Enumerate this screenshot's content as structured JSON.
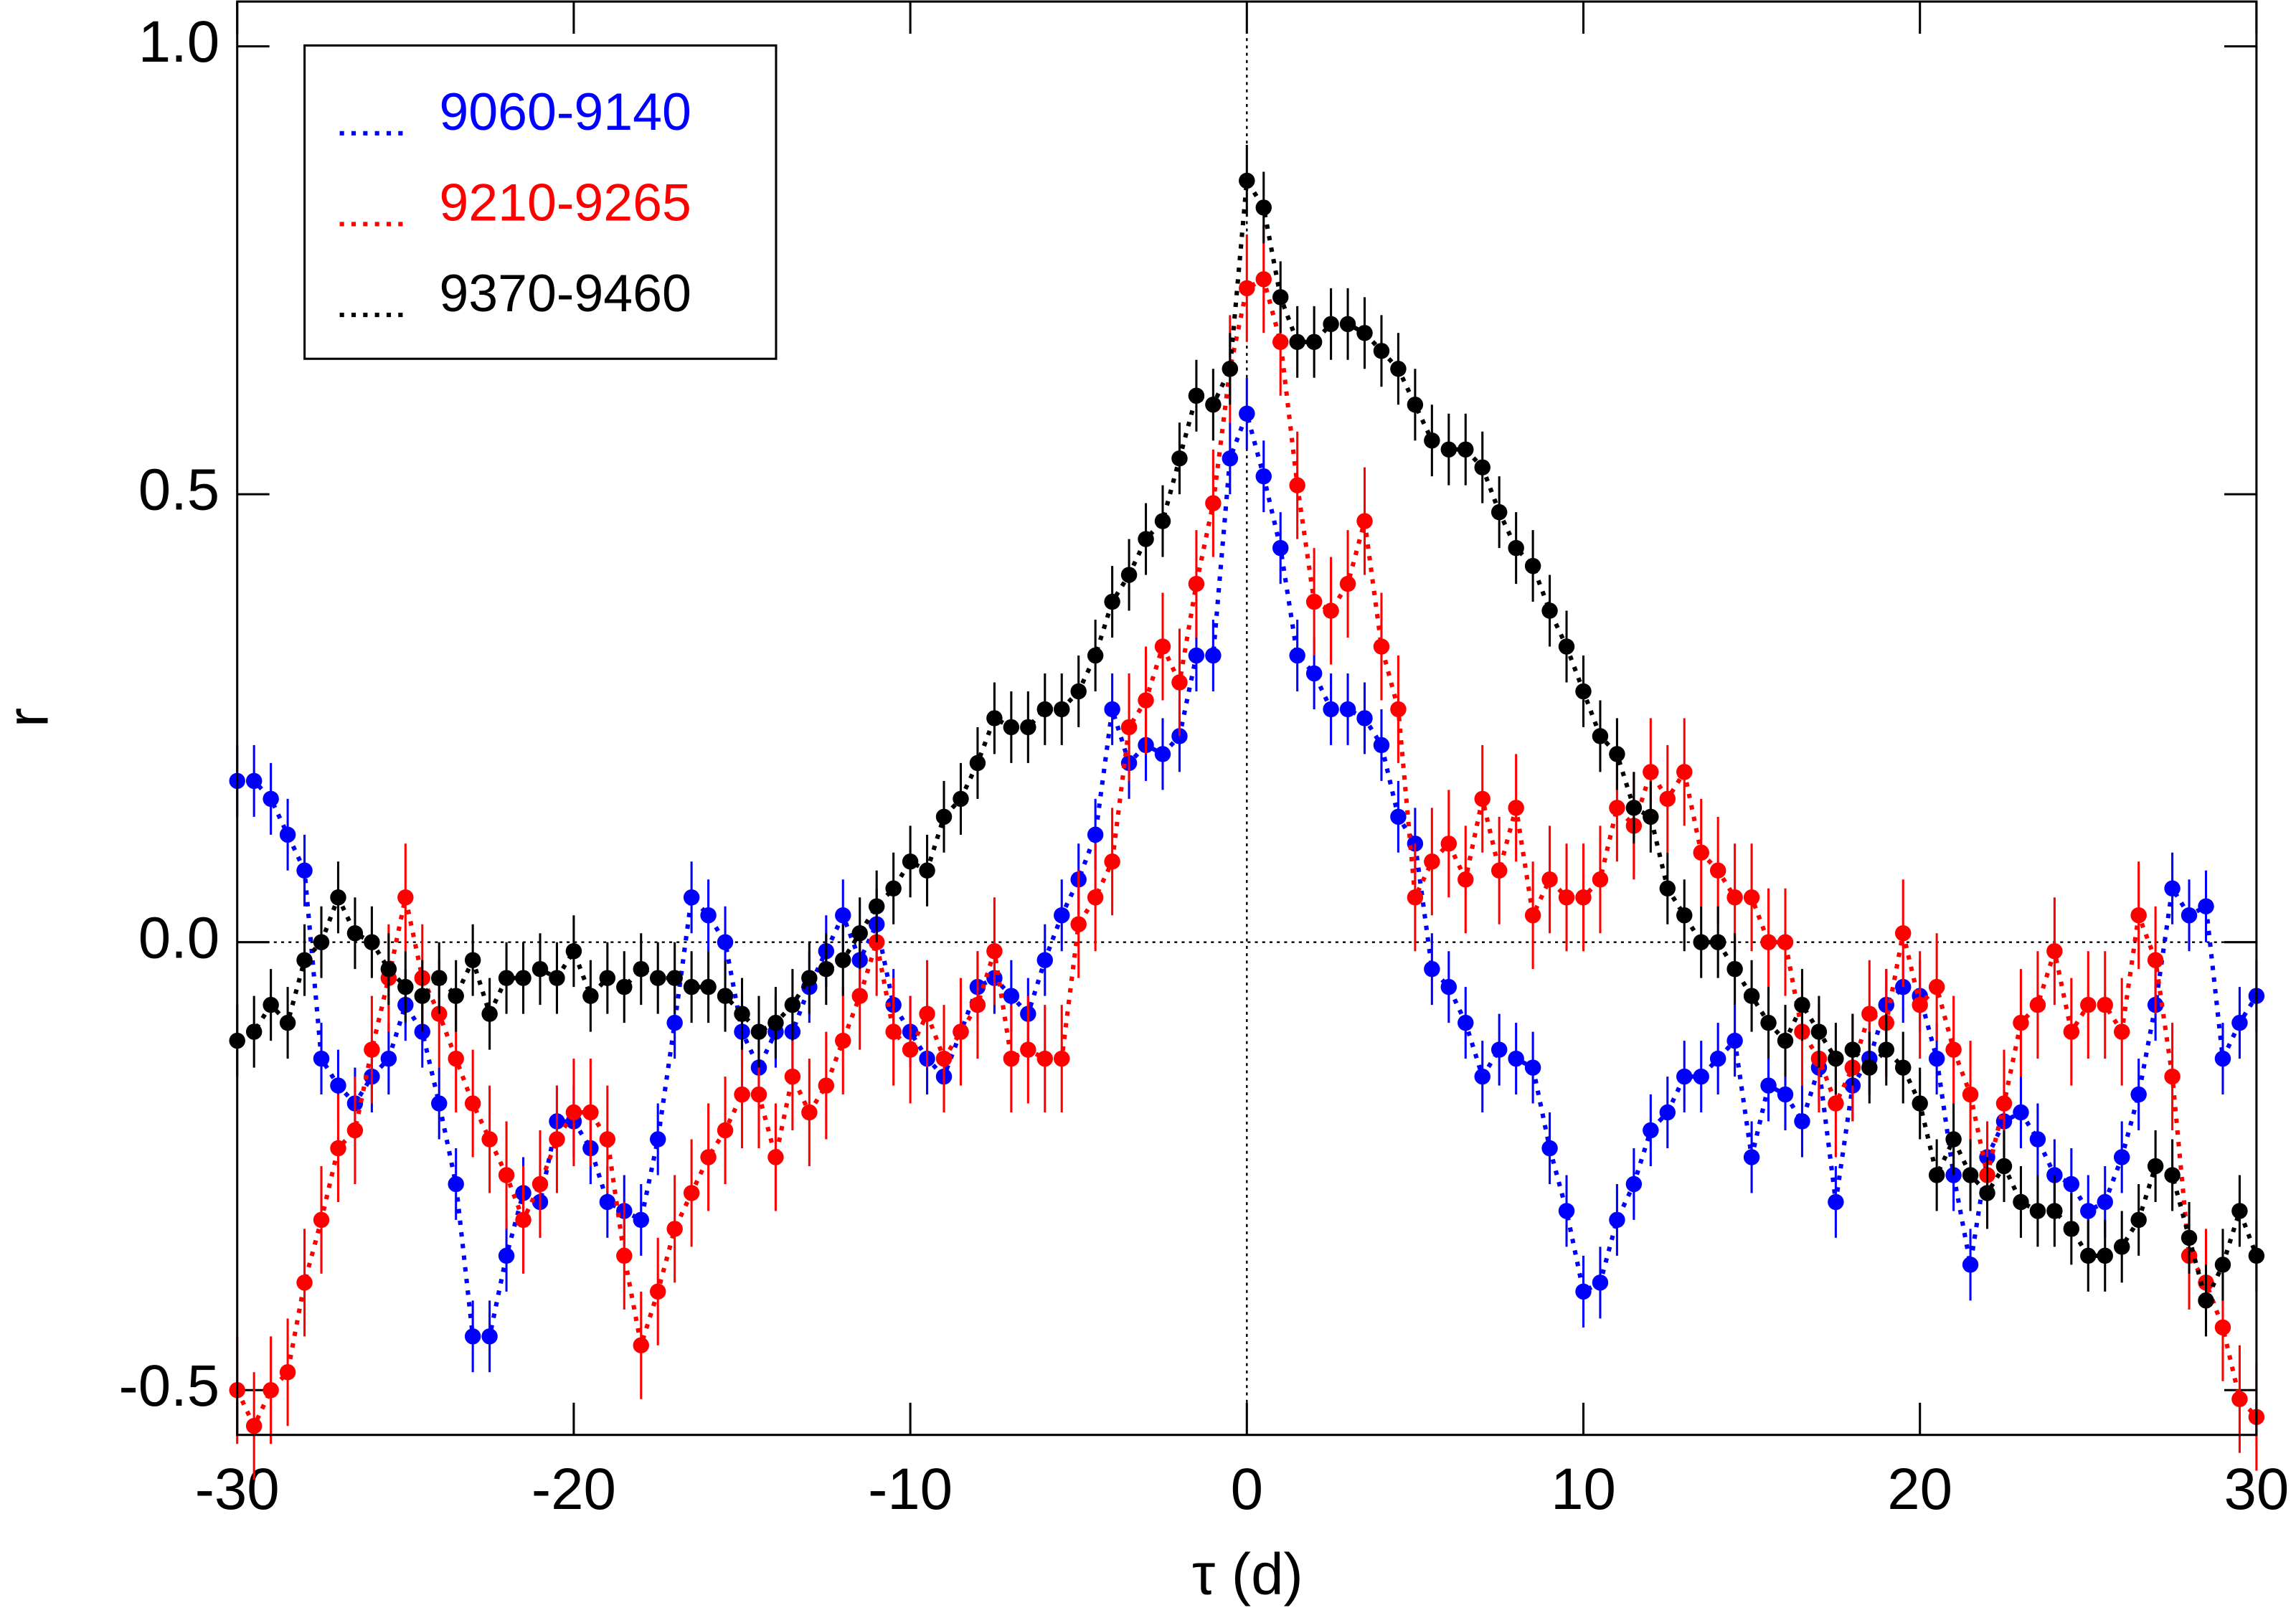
{
  "chart_data": {
    "type": "scatter",
    "xlabel": "τ (d)",
    "ylabel": "r",
    "xlim": [
      -30,
      30
    ],
    "ylim": [
      -0.55,
      1.05
    ],
    "xticks": [
      -30,
      -20,
      -10,
      0,
      10,
      20,
      30
    ],
    "yticks": [
      -0.5,
      {
        "value": 0,
        "label": "0.0"
      },
      0.5,
      {
        "value": 1,
        "label": "1.0"
      }
    ],
    "legend": "upper left",
    "x": [
      -30,
      -29.5,
      -29,
      -28.5,
      -28,
      -27.5,
      -27,
      -26.5,
      -26,
      -25.5,
      -25,
      -24.5,
      -24,
      -23.5,
      -23,
      -22.5,
      -22,
      -21.5,
      -21,
      -20.5,
      -20,
      -19.5,
      -19,
      -18.5,
      -18,
      -17.5,
      -17,
      -16.5,
      -16,
      -15.5,
      -15,
      -14.5,
      -14,
      -13.5,
      -13,
      -12.5,
      -12,
      -11.5,
      -11,
      -10.5,
      -10,
      -9.5,
      -9,
      -8.5,
      -8,
      -7.5,
      -7,
      -6.5,
      -6,
      -5.5,
      -5,
      -4.5,
      -4,
      -3.5,
      -3,
      -2.5,
      -2,
      -1.5,
      -1,
      -0.5,
      0,
      0.5,
      1,
      1.5,
      2,
      2.5,
      3,
      3.5,
      4,
      4.5,
      5,
      5.5,
      6,
      6.5,
      7,
      7.5,
      8,
      8.5,
      9,
      9.5,
      10,
      10.5,
      11,
      11.5,
      12,
      12.5,
      13,
      13.5,
      14,
      14.5,
      15,
      15.5,
      16,
      16.5,
      17,
      17.5,
      18,
      18.5,
      19,
      19.5,
      20,
      20.5,
      21,
      21.5,
      22,
      22.5,
      23,
      23.5,
      24,
      24.5,
      25,
      25.5,
      26,
      26.5,
      27,
      27.5,
      28,
      28.5,
      29,
      29.5,
      30
    ],
    "series": [
      {
        "name": "9060-9140",
        "color": "#0000ff",
        "error": 0.04,
        "values": [
          0.18,
          0.18,
          0.16,
          0.12,
          0.08,
          -0.13,
          -0.16,
          -0.18,
          -0.15,
          -0.13,
          -0.07,
          -0.1,
          -0.18,
          -0.27,
          -0.44,
          -0.44,
          -0.35,
          -0.28,
          -0.29,
          -0.2,
          -0.2,
          -0.23,
          -0.29,
          -0.3,
          -0.31,
          -0.22,
          -0.09,
          0.05,
          0.03,
          0.0,
          -0.1,
          -0.14,
          -0.1,
          -0.1,
          -0.05,
          -0.01,
          0.03,
          -0.02,
          0.02,
          -0.07,
          -0.1,
          -0.13,
          -0.15,
          -0.1,
          -0.05,
          -0.04,
          -0.06,
          -0.08,
          -0.02,
          0.03,
          0.07,
          0.12,
          0.26,
          0.2,
          0.22,
          0.21,
          0.23,
          0.32,
          0.32,
          0.54,
          0.59,
          0.52,
          0.44,
          0.32,
          0.3,
          0.26,
          0.26,
          0.25,
          0.22,
          0.14,
          0.11,
          -0.03,
          -0.05,
          -0.09,
          -0.15,
          -0.12,
          -0.13,
          -0.14,
          -0.23,
          -0.3,
          -0.39,
          -0.38,
          -0.31,
          -0.27,
          -0.21,
          -0.19,
          -0.15,
          -0.15,
          -0.13,
          -0.11,
          -0.24,
          -0.16,
          -0.17,
          -0.2,
          -0.14,
          -0.29,
          -0.16,
          -0.13,
          -0.07,
          -0.05,
          -0.06,
          -0.13,
          -0.26,
          -0.36,
          -0.24,
          -0.2,
          -0.19,
          -0.22,
          -0.26,
          -0.27,
          -0.3,
          -0.29,
          -0.24,
          -0.17,
          -0.07,
          0.06,
          0.03,
          0.04,
          -0.13,
          -0.09,
          -0.06
        ]
      },
      {
        "name": "9210-9265",
        "color": "#ff0000",
        "error": 0.06,
        "values": [
          -0.5,
          -0.54,
          -0.5,
          -0.48,
          -0.38,
          -0.31,
          -0.23,
          -0.21,
          -0.12,
          -0.04,
          0.05,
          -0.04,
          -0.08,
          -0.13,
          -0.18,
          -0.22,
          -0.26,
          -0.31,
          -0.27,
          -0.22,
          -0.19,
          -0.19,
          -0.22,
          -0.35,
          -0.45,
          -0.39,
          -0.32,
          -0.28,
          -0.24,
          -0.21,
          -0.17,
          -0.17,
          -0.24,
          -0.15,
          -0.19,
          -0.16,
          -0.11,
          -0.06,
          0.0,
          -0.1,
          -0.12,
          -0.08,
          -0.13,
          -0.1,
          -0.07,
          -0.01,
          -0.13,
          -0.12,
          -0.13,
          -0.13,
          0.02,
          0.05,
          0.09,
          0.24,
          0.27,
          0.33,
          0.29,
          0.4,
          0.49,
          0.64,
          0.73,
          0.74,
          0.67,
          0.51,
          0.38,
          0.37,
          0.4,
          0.47,
          0.33,
          0.26,
          0.05,
          0.09,
          0.11,
          0.07,
          0.16,
          0.08,
          0.15,
          0.03,
          0.07,
          0.05,
          0.05,
          0.07,
          0.15,
          0.13,
          0.19,
          0.16,
          0.19,
          0.1,
          0.08,
          0.05,
          0.05,
          0.0,
          0.0,
          -0.1,
          -0.13,
          -0.18,
          -0.14,
          -0.08,
          -0.09,
          0.01,
          -0.07,
          -0.05,
          -0.12,
          -0.17,
          -0.26,
          -0.18,
          -0.09,
          -0.07,
          -0.01,
          -0.1,
          -0.07,
          -0.07,
          -0.1,
          0.03,
          -0.02,
          -0.15,
          -0.35,
          -0.38,
          -0.43,
          -0.51,
          -0.53
        ]
      },
      {
        "name": "9370-9460",
        "color": "#000000",
        "error": 0.04,
        "values": [
          -0.11,
          -0.1,
          -0.07,
          -0.09,
          -0.02,
          0.0,
          0.05,
          0.01,
          0.0,
          -0.03,
          -0.05,
          -0.06,
          -0.04,
          -0.06,
          -0.02,
          -0.08,
          -0.04,
          -0.04,
          -0.03,
          -0.04,
          -0.01,
          -0.06,
          -0.04,
          -0.05,
          -0.03,
          -0.04,
          -0.04,
          -0.05,
          -0.05,
          -0.06,
          -0.08,
          -0.1,
          -0.09,
          -0.07,
          -0.04,
          -0.03,
          -0.02,
          0.01,
          0.04,
          0.06,
          0.09,
          0.08,
          0.14,
          0.16,
          0.2,
          0.25,
          0.24,
          0.24,
          0.26,
          0.26,
          0.28,
          0.32,
          0.38,
          0.41,
          0.45,
          0.47,
          0.54,
          0.61,
          0.6,
          0.64,
          0.85,
          0.82,
          0.72,
          0.67,
          0.67,
          0.69,
          0.69,
          0.68,
          0.66,
          0.64,
          0.6,
          0.56,
          0.55,
          0.55,
          0.53,
          0.48,
          0.44,
          0.42,
          0.37,
          0.33,
          0.28,
          0.23,
          0.21,
          0.15,
          0.14,
          0.06,
          0.03,
          0.0,
          0.0,
          -0.03,
          -0.06,
          -0.09,
          -0.11,
          -0.07,
          -0.1,
          -0.13,
          -0.12,
          -0.14,
          -0.12,
          -0.14,
          -0.18,
          -0.26,
          -0.22,
          -0.26,
          -0.28,
          -0.25,
          -0.29,
          -0.3,
          -0.3,
          -0.32,
          -0.35,
          -0.35,
          -0.34,
          -0.31,
          -0.25,
          -0.26,
          -0.33,
          -0.4,
          -0.36,
          -0.3,
          -0.35
        ]
      }
    ]
  }
}
